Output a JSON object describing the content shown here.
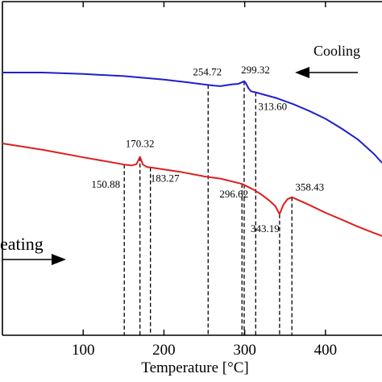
{
  "chart_data": {
    "type": "line",
    "title": "",
    "xlabel": "Temperature [°C]",
    "ylabel": "",
    "xlim": [
      0,
      470
    ],
    "x_ticks": [
      100,
      200,
      300,
      400
    ],
    "grid": false,
    "colors": {
      "cooling": "#1f1fcc",
      "heating": "#dd1f1f",
      "axis": "#000000"
    },
    "series": [
      {
        "key": "cooling",
        "y_offset": 0,
        "x": [
          0,
          50,
          100,
          150,
          200,
          230,
          254.72,
          262,
          270,
          278,
          286,
          292,
          297,
          299.32,
          301,
          305,
          308,
          313.6,
          340,
          360,
          380,
          400,
          420,
          440,
          460,
          470
        ],
        "y": [
          0,
          0,
          -0.8,
          -2,
          -4,
          -5.6,
          -7,
          -7.4,
          -7.7,
          -7.1,
          -6.6,
          -6.4,
          -5.4,
          -4.9,
          -5.7,
          -9.1,
          -10.6,
          -11.2,
          -14.5,
          -17.8,
          -21.7,
          -26.1,
          -31.6,
          -37.7,
          -45.9,
          -50.9
        ]
      },
      {
        "key": "heating",
        "y_offset": -40,
        "x": [
          0,
          50,
          100,
          150.88,
          160,
          166,
          170.32,
          174,
          179,
          183.27,
          220,
          250,
          270,
          296.62,
          310,
          320,
          330,
          338,
          343.19,
          348,
          353,
          358.43,
          380,
          400,
          420,
          440,
          460,
          470
        ],
        "y": [
          0,
          -3.6,
          -7.8,
          -11.9,
          -12.4,
          -11.7,
          -7.6,
          -11.9,
          -13.3,
          -13.5,
          -16,
          -18.6,
          -19.8,
          -22.8,
          -25.8,
          -28.6,
          -32,
          -35.4,
          -39.9,
          -34.5,
          -31.4,
          -30.3,
          -34.7,
          -39.1,
          -42.9,
          -46.9,
          -50.5,
          -52.2
        ]
      }
    ],
    "annotations": [
      {
        "text": "150.88",
        "x": 150.88,
        "series": "heating"
      },
      {
        "text": "170.32",
        "x": 170.32,
        "series": "heating"
      },
      {
        "text": "183.27",
        "x": 183.27,
        "series": "heating"
      },
      {
        "text": "254.72",
        "x": 254.72,
        "series": "cooling"
      },
      {
        "text": "296.62",
        "x": 296.62,
        "series": "heating"
      },
      {
        "text": "299.32",
        "x": 299.32,
        "series": "cooling"
      },
      {
        "text": "313.60",
        "x": 313.6,
        "series": "cooling"
      },
      {
        "text": "343.19",
        "x": 343.19,
        "series": "heating"
      },
      {
        "text": "358.43",
        "x": 358.43,
        "series": "heating"
      }
    ],
    "direction_labels": {
      "cooling": "Cooling",
      "heating": "eating"
    }
  }
}
